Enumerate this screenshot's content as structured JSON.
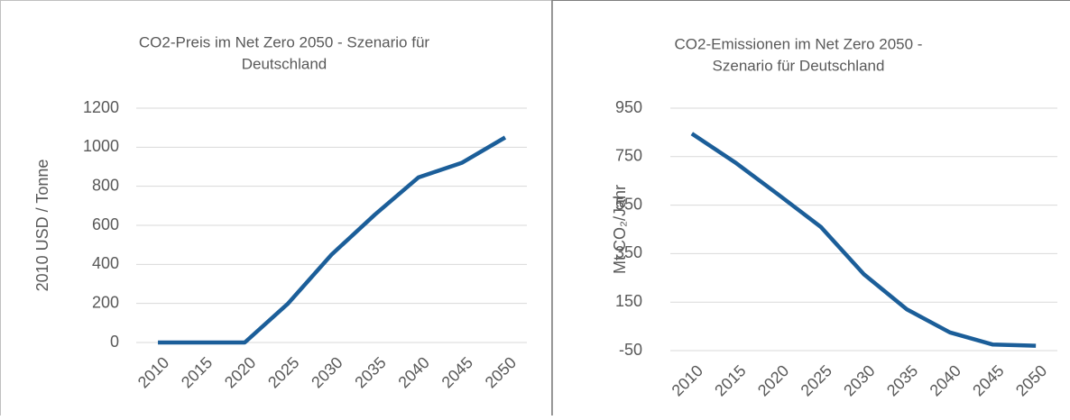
{
  "chart_data": [
    {
      "type": "line",
      "title": [
        "CO2-Preis  im Net Zero 2050 - Szenario für",
        "Deutschland"
      ],
      "y_label": "2010 USD / Tonne",
      "categories": [
        "2010",
        "2015",
        "2020",
        "2025",
        "2030",
        "2035",
        "2040",
        "2045",
        "2050"
      ],
      "values": [
        0,
        0,
        0,
        200,
        450,
        655,
        845,
        920,
        1050
      ],
      "color": "#1b5e99",
      "ylim": [
        0,
        1200
      ],
      "yticks": [
        0,
        200,
        400,
        600,
        800,
        1000,
        1200
      ],
      "grid": true
    },
    {
      "type": "line",
      "title": [
        "CO2-Emissionen  im Net Zero 2050 -",
        "Szenario für Deutschland"
      ],
      "y_label": "Mt CO₂/Jahr",
      "categories": [
        "2010",
        "2015",
        "2020",
        "2025",
        "2030",
        "2035",
        "2040",
        "2045",
        "2050"
      ],
      "values": [
        845,
        727,
        595,
        460,
        265,
        120,
        25,
        -25,
        -30
      ],
      "color": "#1b5e99",
      "ylim": [
        -50,
        950
      ],
      "yticks": [
        -50,
        150,
        350,
        550,
        750,
        950
      ],
      "grid": true
    }
  ]
}
